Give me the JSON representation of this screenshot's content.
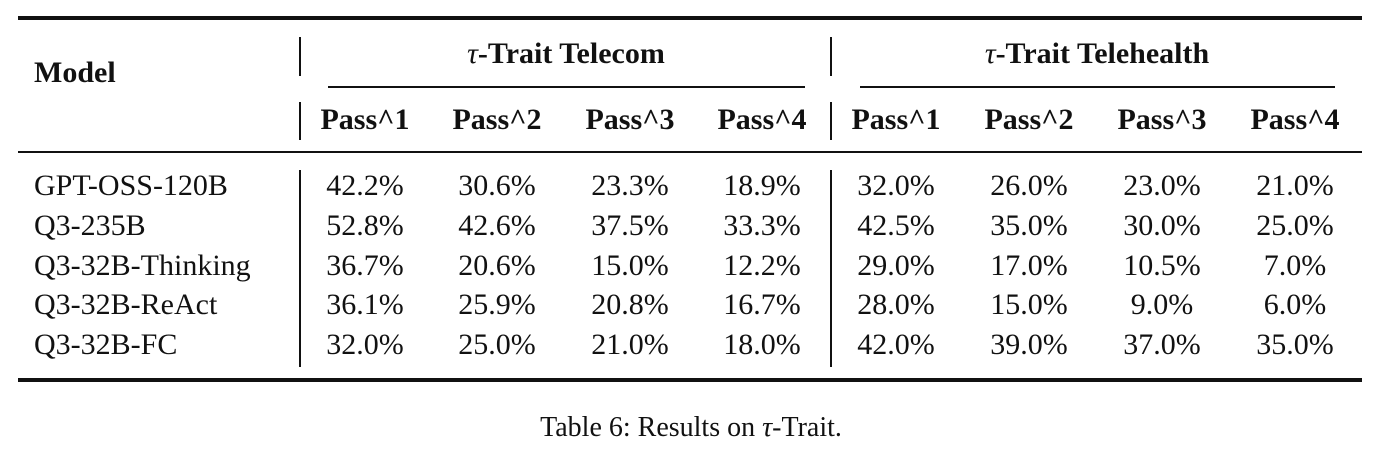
{
  "table": {
    "header": {
      "model": "Model",
      "groups": [
        "τ-Trait Telecom",
        "τ-Trait Telehealth"
      ],
      "columns": [
        "Pass^1",
        "Pass^2",
        "Pass^3",
        "Pass^4",
        "Pass^1",
        "Pass^2",
        "Pass^3",
        "Pass^4"
      ]
    },
    "rows": [
      [
        "GPT-OSS-120B",
        "42.2%",
        "30.6%",
        "23.3%",
        "18.9%",
        "32.0%",
        "26.0%",
        "23.0%",
        "21.0%"
      ],
      [
        "Q3-235B",
        "52.8%",
        "42.6%",
        "37.5%",
        "33.3%",
        "42.5%",
        "35.0%",
        "30.0%",
        "25.0%"
      ],
      [
        "Q3-32B-Thinking",
        "36.7%",
        "20.6%",
        "15.0%",
        "12.2%",
        "29.0%",
        "17.0%",
        "10.5%",
        "7.0%"
      ],
      [
        "Q3-32B-ReAct",
        "36.1%",
        "25.9%",
        "20.8%",
        "16.7%",
        "28.0%",
        "15.0%",
        "9.0%",
        "6.0%"
      ],
      [
        "Q3-32B-FC",
        "32.0%",
        "25.0%",
        "21.0%",
        "18.0%",
        "42.0%",
        "39.0%",
        "37.0%",
        "35.0%"
      ]
    ]
  },
  "caption": "Table 6: Results on τ-Trait."
}
